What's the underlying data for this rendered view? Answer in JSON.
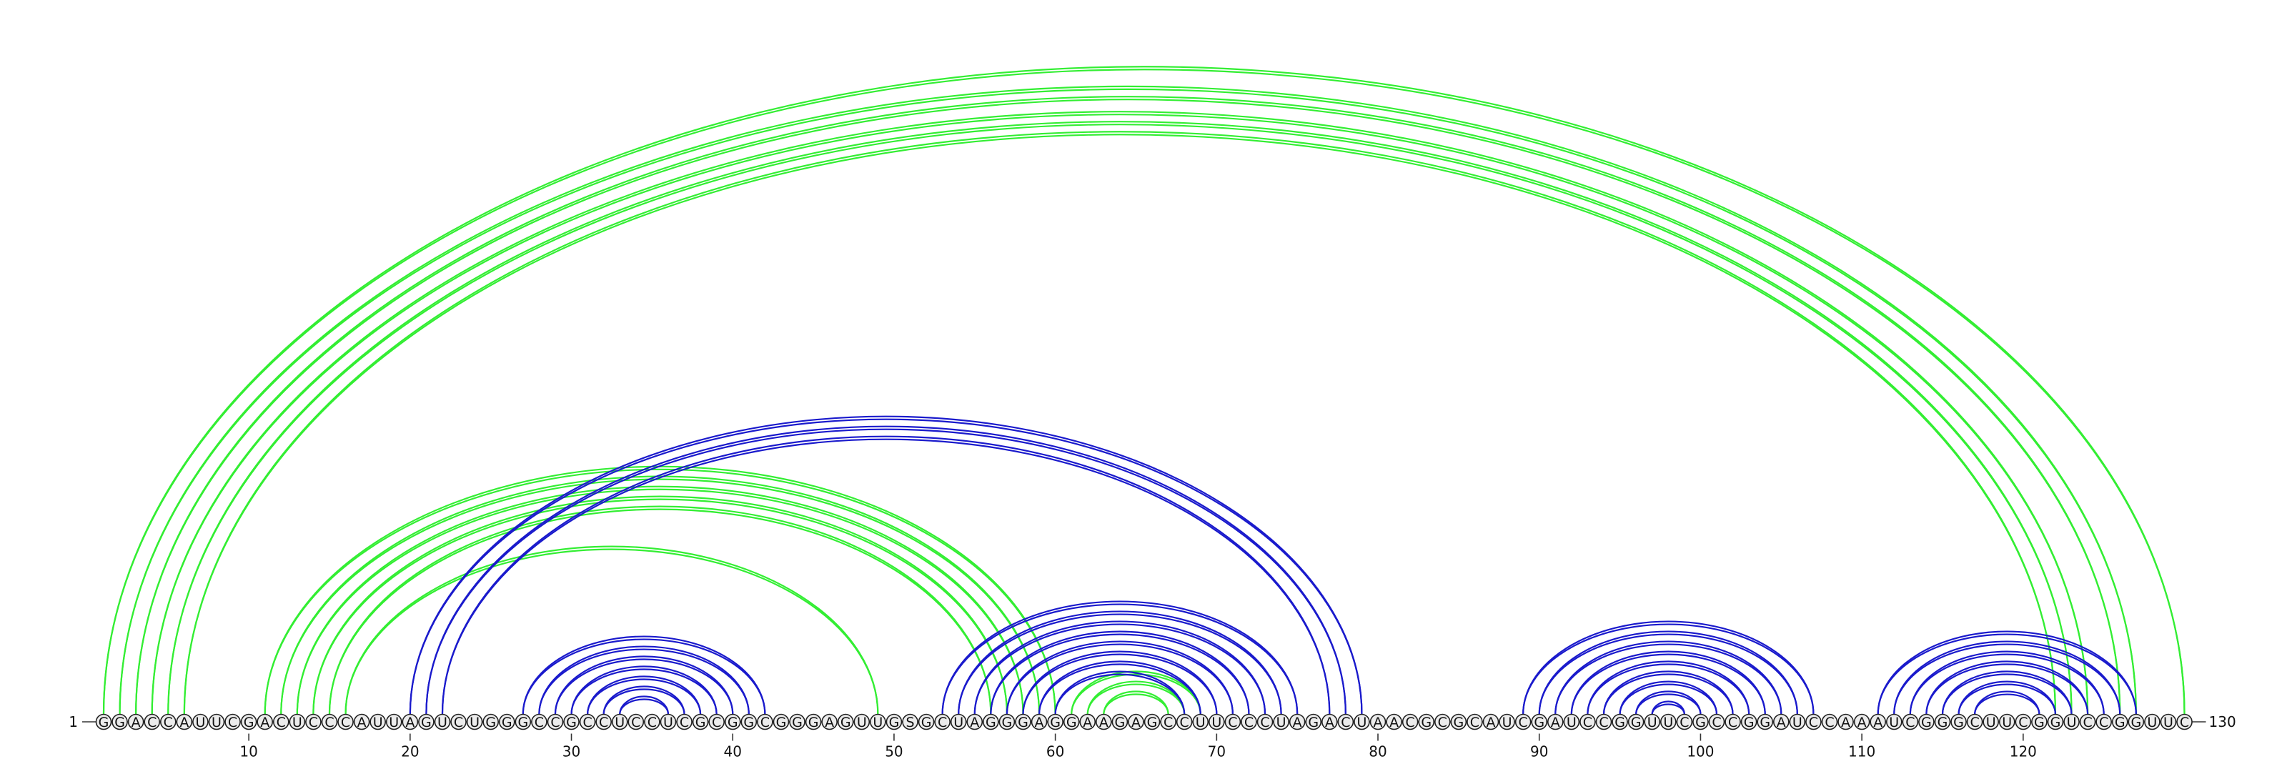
{
  "sequence": "GGACCAUUCGACUCCCAUUAGUCUGGGCCGCCUCCUCGCGGCGGGAGUUGSGCUAGGGAGGAAGAGCCUUCCCUAGACUAACGCGCAUCGAUCCGGUUCGCCGGAUCCAAAUCGGGCUUCGGUCCGGUUC",
  "start_label": "1",
  "end_label": "130",
  "axis_ticks": [
    {
      "position": 10,
      "label": "10"
    },
    {
      "position": 20,
      "label": "20"
    },
    {
      "position": 30,
      "label": "30"
    },
    {
      "position": 40,
      "label": "40"
    },
    {
      "position": 50,
      "label": "50"
    },
    {
      "position": 60,
      "label": "60"
    },
    {
      "position": 70,
      "label": "70"
    },
    {
      "position": 80,
      "label": "80"
    },
    {
      "position": 90,
      "label": "90"
    },
    {
      "position": 100,
      "label": "100"
    },
    {
      "position": 110,
      "label": "110"
    },
    {
      "position": 120,
      "label": "120"
    }
  ],
  "colors": {
    "green": "#33ee33",
    "blue": "#1a1acc"
  },
  "pair_sets": [
    {
      "color": "green",
      "pairs": [
        [
          1,
          130
        ],
        [
          2,
          127
        ],
        [
          3,
          126
        ],
        [
          4,
          124
        ],
        [
          5,
          123
        ],
        [
          6,
          122
        ],
        [
          11,
          60
        ],
        [
          12,
          59
        ],
        [
          13,
          58
        ],
        [
          14,
          57
        ],
        [
          15,
          56
        ],
        [
          16,
          49
        ],
        [
          61,
          69
        ],
        [
          62,
          68
        ],
        [
          63,
          67
        ]
      ]
    },
    {
      "color": "blue",
      "pairs": [
        [
          20,
          79
        ],
        [
          21,
          78
        ],
        [
          22,
          77
        ],
        [
          27,
          42
        ],
        [
          28,
          41
        ],
        [
          29,
          40
        ],
        [
          30,
          39
        ],
        [
          31,
          38
        ],
        [
          32,
          37
        ],
        [
          33,
          36
        ],
        [
          53,
          75
        ],
        [
          54,
          74
        ],
        [
          55,
          73
        ],
        [
          56,
          72
        ],
        [
          57,
          71
        ],
        [
          58,
          70
        ],
        [
          59,
          69
        ],
        [
          60,
          68
        ],
        [
          89,
          107
        ],
        [
          90,
          106
        ],
        [
          91,
          105
        ],
        [
          92,
          104
        ],
        [
          93,
          103
        ],
        [
          94,
          102
        ],
        [
          95,
          101
        ],
        [
          96,
          100
        ],
        [
          97,
          99
        ],
        [
          111,
          127
        ],
        [
          112,
          126
        ],
        [
          113,
          125
        ],
        [
          114,
          124
        ],
        [
          115,
          123
        ],
        [
          116,
          122
        ],
        [
          117,
          121
        ]
      ]
    }
  ]
}
